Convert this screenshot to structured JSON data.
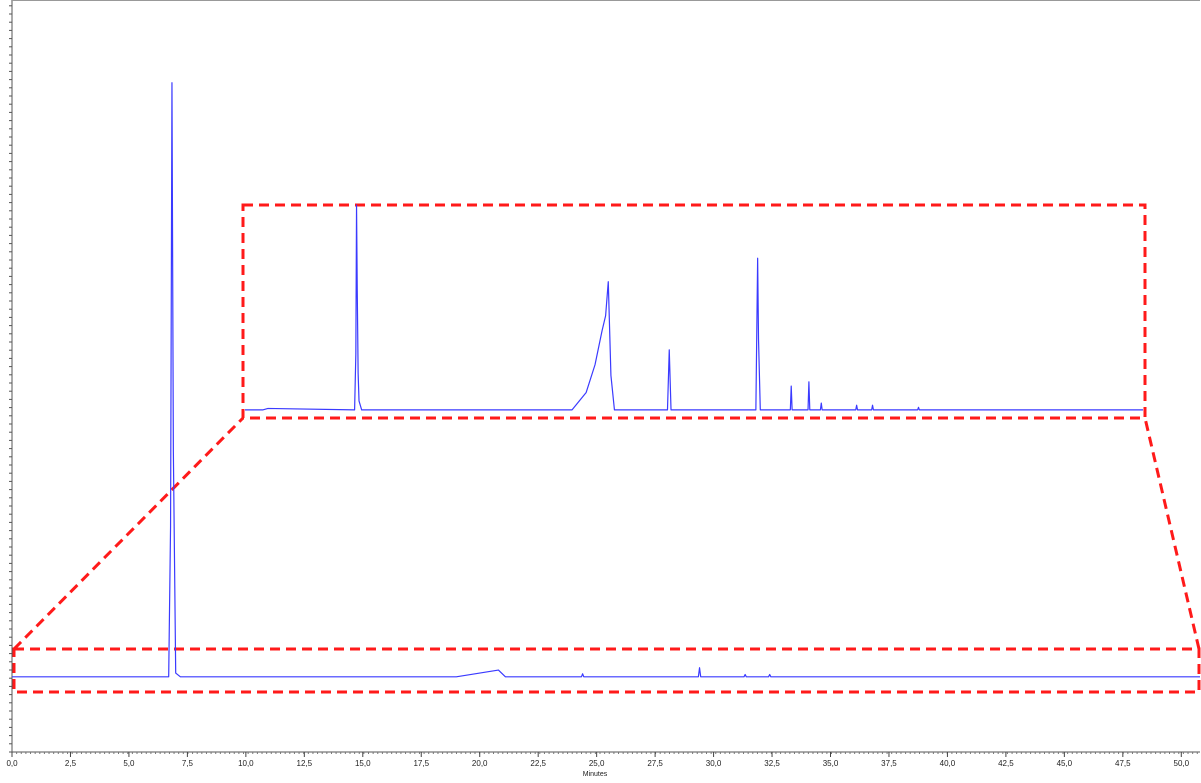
{
  "chart_data": {
    "type": "line",
    "x_label": "Minutes",
    "xlim": [
      0,
      50.8
    ],
    "xticks": [
      {
        "value": 0,
        "label": "0,0"
      },
      {
        "value": 2.5,
        "label": "2,5"
      },
      {
        "value": 5,
        "label": "5,0"
      },
      {
        "value": 7.5,
        "label": "7,5"
      },
      {
        "value": 10,
        "label": "10,0"
      },
      {
        "value": 12.5,
        "label": "12,5"
      },
      {
        "value": 15,
        "label": "15,0"
      },
      {
        "value": 17.5,
        "label": "17,5"
      },
      {
        "value": 20,
        "label": "20,0"
      },
      {
        "value": 22.5,
        "label": "22,5"
      },
      {
        "value": 25,
        "label": "25,0"
      },
      {
        "value": 27.5,
        "label": "27,5"
      },
      {
        "value": 30,
        "label": "30,0"
      },
      {
        "value": 32.5,
        "label": "32,5"
      },
      {
        "value": 35,
        "label": "35,0"
      },
      {
        "value": 37.5,
        "label": "37,5"
      },
      {
        "value": 40,
        "label": "40,0"
      },
      {
        "value": 42.5,
        "label": "42,5"
      },
      {
        "value": 45,
        "label": "45,0"
      },
      {
        "value": 47.5,
        "label": "47,5"
      },
      {
        "value": 50,
        "label": "50,0"
      }
    ],
    "ylim": [
      0,
      100
    ],
    "series": [
      {
        "color": "#3a3aff",
        "x": [
          0,
          6.7,
          6.78,
          6.84,
          6.9,
          7.0,
          7.2,
          19.0,
          20.8,
          20.9,
          21.1,
          24.35,
          24.4,
          24.45,
          29.35,
          29.4,
          29.45,
          31.3,
          31.35,
          31.4,
          32.35,
          32.4,
          32.45,
          50.8
        ],
        "values": [
          10,
          10,
          30,
          89,
          40,
          10.5,
          10,
          10,
          10.9,
          10.6,
          10,
          10,
          10.4,
          10,
          10,
          11.2,
          10,
          10,
          10.3,
          10,
          10,
          10.3,
          10,
          10
        ]
      }
    ],
    "inset": {
      "xlim": [
        0,
        50.8
      ],
      "ylim": [
        0,
        100
      ],
      "series": [
        {
          "color": "#3a3aff",
          "x": [
            0,
            1,
            1.3,
            6.2,
            6.27,
            6.31,
            6.35,
            6.4,
            6.45,
            6.6,
            18.5,
            19.3,
            19.8,
            20.2,
            20.4,
            20.55,
            20.7,
            20.9,
            23.9,
            24.0,
            24.1,
            28.9,
            29.0,
            29.05,
            29.15,
            30.85,
            30.9,
            30.95,
            31.85,
            31.9,
            31.95,
            32.55,
            32.6,
            32.65,
            34.55,
            34.6,
            34.65,
            35.45,
            35.5,
            35.55,
            38.05,
            38.1,
            38.15,
            50.8
          ],
          "values": [
            3.8,
            3.8,
            4.5,
            3.8,
            30,
            100,
            60,
            21,
            8,
            3.8,
            3.8,
            12,
            25,
            41,
            48,
            64,
            20,
            3.8,
            3.8,
            32,
            3.8,
            3.8,
            75,
            37,
            3.8,
            3.8,
            15,
            3.8,
            3.8,
            17,
            3.8,
            3.8,
            7,
            3.8,
            3.8,
            6,
            3.8,
            3.8,
            6,
            3.8,
            3.8,
            5,
            3.8,
            3.8
          ]
        }
      ]
    }
  }
}
